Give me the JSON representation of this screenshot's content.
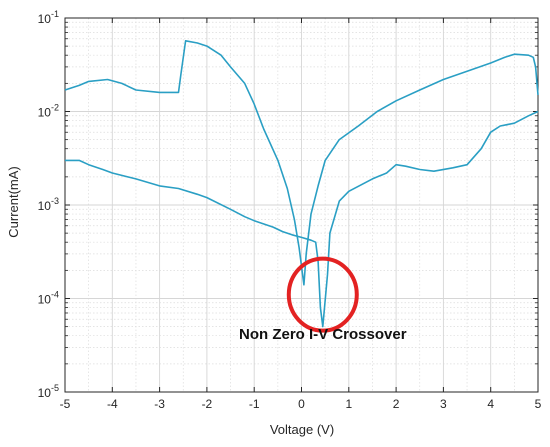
{
  "chart_data": {
    "type": "line",
    "title": "",
    "xlabel": "Voltage (V)",
    "ylabel": "Current(mA)",
    "xlim": [
      -5,
      5
    ],
    "ylim": [
      1e-05,
      0.1
    ],
    "yscale": "log",
    "grid": true,
    "x_ticks": [
      {
        "value": -5,
        "label": "-5"
      },
      {
        "value": -4,
        "label": "-4"
      },
      {
        "value": -3,
        "label": "-3"
      },
      {
        "value": -2,
        "label": "-2"
      },
      {
        "value": -1,
        "label": "-1"
      },
      {
        "value": 0,
        "label": "0"
      },
      {
        "value": 1,
        "label": "1"
      },
      {
        "value": 2,
        "label": "2"
      },
      {
        "value": 3,
        "label": "3"
      },
      {
        "value": 4,
        "label": "4"
      },
      {
        "value": 5,
        "label": "5"
      }
    ],
    "y_ticks": [
      {
        "value": 1e-05,
        "base": "10",
        "exp": "-5"
      },
      {
        "value": 0.0001,
        "base": "10",
        "exp": "-4"
      },
      {
        "value": 0.001,
        "base": "10",
        "exp": "-3"
      },
      {
        "value": 0.01,
        "base": "10",
        "exp": "-2"
      },
      {
        "value": 0.1,
        "base": "10",
        "exp": "-1"
      }
    ],
    "series": [
      {
        "color": "#2a9fc4",
        "points": [
          [
            -5,
            0.003
          ],
          [
            -4.7,
            0.003
          ],
          [
            -4.5,
            0.0027
          ],
          [
            -4.2,
            0.0024
          ],
          [
            -4.0,
            0.0022
          ],
          [
            -3.5,
            0.0019
          ],
          [
            -3.0,
            0.0016
          ],
          [
            -2.6,
            0.0015
          ],
          [
            -2.2,
            0.0013
          ],
          [
            -2.0,
            0.0012
          ],
          [
            -1.5,
            0.0009
          ],
          [
            -1.2,
            0.00075
          ],
          [
            -1.0,
            0.00068
          ],
          [
            -0.6,
            0.00058
          ],
          [
            -0.4,
            0.00052
          ],
          [
            -0.2,
            0.00048
          ],
          [
            0.0,
            0.00045
          ],
          [
            0.2,
            0.00042
          ],
          [
            0.3,
            0.0004
          ],
          [
            0.35,
            0.00025
          ],
          [
            0.4,
            8e-05
          ],
          [
            0.45,
            5e-05
          ],
          [
            0.55,
            0.00018
          ],
          [
            0.6,
            0.0005
          ],
          [
            0.8,
            0.0011
          ],
          [
            1.0,
            0.0014
          ],
          [
            1.5,
            0.0019
          ],
          [
            1.8,
            0.0022
          ],
          [
            2.0,
            0.0027
          ],
          [
            2.2,
            0.0026
          ],
          [
            2.5,
            0.0024
          ],
          [
            2.8,
            0.0023
          ],
          [
            3.2,
            0.0025
          ],
          [
            3.5,
            0.0027
          ],
          [
            3.8,
            0.004
          ],
          [
            4.0,
            0.006
          ],
          [
            4.2,
            0.007
          ],
          [
            4.5,
            0.0075
          ],
          [
            4.8,
            0.009
          ],
          [
            5.0,
            0.01
          ]
        ]
      },
      {
        "color": "#2a9fc4",
        "points": [
          [
            -5,
            0.017
          ],
          [
            -4.7,
            0.019
          ],
          [
            -4.5,
            0.021
          ],
          [
            -4.1,
            0.022
          ],
          [
            -3.8,
            0.02
          ],
          [
            -3.5,
            0.017
          ],
          [
            -3.0,
            0.016
          ],
          [
            -2.6,
            0.016
          ],
          [
            -2.55,
            0.025
          ],
          [
            -2.45,
            0.057
          ],
          [
            -2.2,
            0.054
          ],
          [
            -2.0,
            0.05
          ],
          [
            -1.7,
            0.04
          ],
          [
            -1.5,
            0.03
          ],
          [
            -1.2,
            0.02
          ],
          [
            -1.0,
            0.012
          ],
          [
            -0.8,
            0.0065
          ],
          [
            -0.5,
            0.003
          ],
          [
            -0.3,
            0.0015
          ],
          [
            -0.15,
            0.0007
          ],
          [
            -0.05,
            0.00035
          ],
          [
            0.05,
            0.00014
          ],
          [
            0.1,
            0.0003
          ],
          [
            0.2,
            0.0008
          ],
          [
            0.35,
            0.0016
          ],
          [
            0.5,
            0.003
          ],
          [
            0.8,
            0.005
          ],
          [
            1.2,
            0.007
          ],
          [
            1.6,
            0.01
          ],
          [
            2.0,
            0.013
          ],
          [
            2.5,
            0.017
          ],
          [
            3.0,
            0.022
          ],
          [
            3.5,
            0.027
          ],
          [
            4.0,
            0.033
          ],
          [
            4.3,
            0.038
          ],
          [
            4.5,
            0.041
          ],
          [
            4.8,
            0.04
          ],
          [
            4.9,
            0.038
          ],
          [
            4.95,
            0.03
          ],
          [
            5.0,
            0.015
          ]
        ]
      }
    ],
    "annotations": [
      {
        "shape": "circle",
        "center": [
          0.45,
          0.00011
        ],
        "color": "#e32222"
      },
      {
        "text": "Non Zero I-V Crossover",
        "anchor": [
          0.45,
          3.7e-05
        ]
      }
    ]
  }
}
